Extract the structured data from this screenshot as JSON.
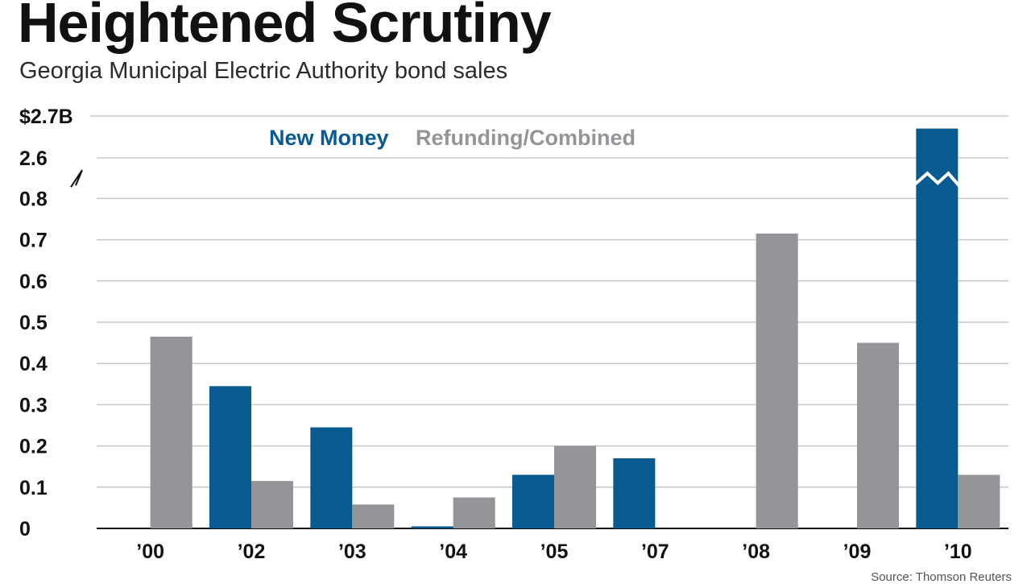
{
  "chart_data": {
    "type": "bar",
    "title": "Heightened Scrutiny",
    "subtitle": "Georgia Municipal Electric Authority bond sales",
    "xlabel": "",
    "ylabel": "",
    "ylim": [
      0,
      2.7
    ],
    "axis_break": {
      "from": 0.8,
      "to": 2.6
    },
    "y_ticks": [
      0,
      0.1,
      0.2,
      0.3,
      0.4,
      0.5,
      0.6,
      0.7,
      0.8,
      2.6,
      2.7
    ],
    "y_tick_labels": [
      "0",
      "0.1",
      "0.2",
      "0.3",
      "0.4",
      "0.5",
      "0.6",
      "0.7",
      "0.8",
      "2.6",
      "$2.7B"
    ],
    "categories": [
      "’00",
      "’02",
      "’03",
      "’04",
      "’05",
      "’07",
      "’08",
      "’09",
      "’10"
    ],
    "series": [
      {
        "name": "New Money",
        "color": "#0a5a92",
        "values": [
          0,
          0.345,
          0.245,
          0.005,
          0.13,
          0.17,
          0,
          0,
          2.67
        ]
      },
      {
        "name": "Refunding/Combined",
        "color": "#939598",
        "values": [
          0.465,
          0.115,
          0.058,
          0.075,
          0.2,
          0,
          0.715,
          0.45,
          0.13
        ]
      }
    ],
    "legend": [
      "New Money",
      "Refunding/Combined"
    ],
    "legend_position": "top-left",
    "grid": true,
    "source": "Source: Thomson Reuters"
  }
}
